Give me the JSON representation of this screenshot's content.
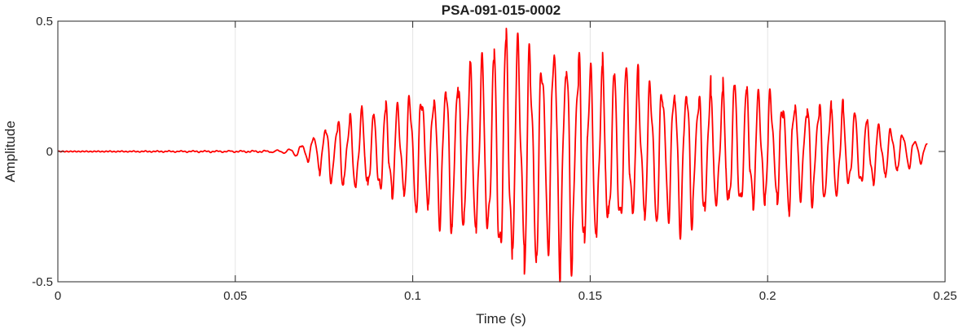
{
  "chart_data": {
    "type": "line",
    "title": "PSA-091-015-0002",
    "xlabel": "Time (s)",
    "ylabel": "Amplitude",
    "xlim": [
      0,
      0.25
    ],
    "ylim": [
      -0.5,
      0.5
    ],
    "x_ticks": [
      0,
      0.05,
      0.1,
      0.15,
      0.2,
      0.25
    ],
    "x_tick_labels": [
      "0",
      "0.05",
      "0.1",
      "0.15",
      "0.2",
      "0.25"
    ],
    "y_ticks": [
      -0.5,
      0,
      0.5
    ],
    "y_tick_labels": [
      "-0.5",
      "0",
      "0.5"
    ],
    "grid": "x-only",
    "legend": "none",
    "series": [
      {
        "color": "#ff0000",
        "x_range": [
          0,
          0.245
        ],
        "envelope": [
          {
            "t": 0.0,
            "amp": 0.0
          },
          {
            "t": 0.06,
            "amp": 0.003
          },
          {
            "t": 0.065,
            "amp": 0.008
          },
          {
            "t": 0.07,
            "amp": 0.03
          },
          {
            "t": 0.075,
            "amp": 0.09
          },
          {
            "t": 0.085,
            "amp": 0.14
          },
          {
            "t": 0.095,
            "amp": 0.17
          },
          {
            "t": 0.105,
            "amp": 0.22
          },
          {
            "t": 0.115,
            "amp": 0.3
          },
          {
            "t": 0.125,
            "amp": 0.4
          },
          {
            "t": 0.135,
            "amp": 0.42
          },
          {
            "t": 0.145,
            "amp": 0.37
          },
          {
            "t": 0.155,
            "amp": 0.3
          },
          {
            "t": 0.17,
            "amp": 0.25
          },
          {
            "t": 0.19,
            "amp": 0.22
          },
          {
            "t": 0.21,
            "amp": 0.18
          },
          {
            "t": 0.225,
            "amp": 0.15
          },
          {
            "t": 0.235,
            "amp": 0.08
          },
          {
            "t": 0.245,
            "amp": 0.03
          }
        ],
        "frequency_hz": 295
      }
    ]
  }
}
